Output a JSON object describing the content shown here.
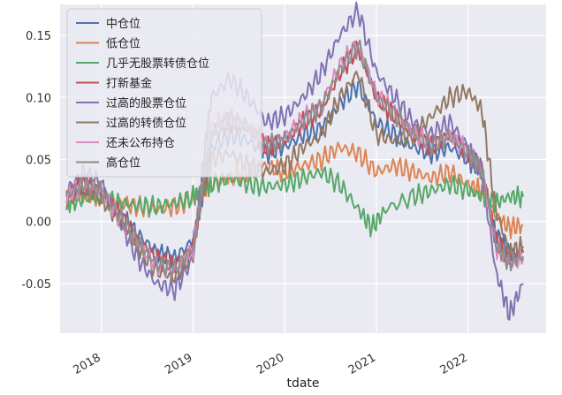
{
  "chart_data": {
    "type": "line",
    "xlabel": "tdate",
    "ylabel": "",
    "ylim": [
      -0.09,
      0.175
    ],
    "grid": true,
    "legend_position": "top-left",
    "x_ticks": [
      "2018",
      "2019",
      "2020",
      "2021",
      "2022"
    ],
    "y_ticks": [
      "0.15",
      "0.10",
      "0.05",
      "0.00",
      "-0.05"
    ],
    "y_tick_values": [
      0.15,
      0.1,
      0.05,
      0.0,
      -0.05
    ],
    "x_range": [
      2017.55,
      2022.85
    ],
    "series": [
      {
        "name": "中仓位",
        "color": "#4c72b0",
        "points": [
          [
            2017.62,
            0.02
          ],
          [
            2017.8,
            0.028
          ],
          [
            2018.0,
            0.022
          ],
          [
            2018.2,
            0.005
          ],
          [
            2018.4,
            -0.01
          ],
          [
            2018.6,
            -0.025
          ],
          [
            2018.8,
            -0.03
          ],
          [
            2019.0,
            -0.015
          ],
          [
            2019.1,
            0.02
          ],
          [
            2019.2,
            0.06
          ],
          [
            2019.4,
            0.07
          ],
          [
            2019.6,
            0.065
          ],
          [
            2019.8,
            0.055
          ],
          [
            2020.0,
            0.06
          ],
          [
            2020.2,
            0.07
          ],
          [
            2020.4,
            0.075
          ],
          [
            2020.6,
            0.095
          ],
          [
            2020.8,
            0.11
          ],
          [
            2021.0,
            0.08
          ],
          [
            2021.2,
            0.07
          ],
          [
            2021.4,
            0.06
          ],
          [
            2021.6,
            0.055
          ],
          [
            2021.8,
            0.06
          ],
          [
            2022.0,
            0.05
          ],
          [
            2022.15,
            0.04
          ],
          [
            2022.3,
            -0.01
          ],
          [
            2022.45,
            -0.025
          ],
          [
            2022.6,
            -0.03
          ]
        ]
      },
      {
        "name": "低仓位",
        "color": "#dd8452",
        "points": [
          [
            2017.62,
            0.018
          ],
          [
            2017.8,
            0.02
          ],
          [
            2018.0,
            0.022
          ],
          [
            2018.2,
            0.015
          ],
          [
            2018.4,
            0.012
          ],
          [
            2018.6,
            0.01
          ],
          [
            2018.8,
            0.012
          ],
          [
            2019.0,
            0.018
          ],
          [
            2019.1,
            0.025
          ],
          [
            2019.2,
            0.03
          ],
          [
            2019.4,
            0.035
          ],
          [
            2019.6,
            0.04
          ],
          [
            2019.8,
            0.045
          ],
          [
            2020.0,
            0.04
          ],
          [
            2020.2,
            0.045
          ],
          [
            2020.4,
            0.05
          ],
          [
            2020.6,
            0.06
          ],
          [
            2020.8,
            0.055
          ],
          [
            2021.0,
            0.04
          ],
          [
            2021.2,
            0.045
          ],
          [
            2021.4,
            0.04
          ],
          [
            2021.6,
            0.035
          ],
          [
            2021.8,
            0.04
          ],
          [
            2022.0,
            0.03
          ],
          [
            2022.15,
            0.025
          ],
          [
            2022.3,
            0.005
          ],
          [
            2022.45,
            -0.005
          ],
          [
            2022.6,
            -0.003
          ]
        ]
      },
      {
        "name": "几乎无股票转债仓位",
        "color": "#55a868",
        "points": [
          [
            2017.62,
            0.015
          ],
          [
            2017.8,
            0.018
          ],
          [
            2018.0,
            0.02
          ],
          [
            2018.2,
            0.015
          ],
          [
            2018.4,
            0.013
          ],
          [
            2018.6,
            0.012
          ],
          [
            2018.8,
            0.015
          ],
          [
            2019.0,
            0.02
          ],
          [
            2019.1,
            0.025
          ],
          [
            2019.2,
            0.03
          ],
          [
            2019.4,
            0.035
          ],
          [
            2019.6,
            0.03
          ],
          [
            2019.8,
            0.028
          ],
          [
            2020.0,
            0.03
          ],
          [
            2020.2,
            0.035
          ],
          [
            2020.4,
            0.04
          ],
          [
            2020.6,
            0.03
          ],
          [
            2020.8,
            0.01
          ],
          [
            2020.95,
            -0.005
          ],
          [
            2021.1,
            0.01
          ],
          [
            2021.4,
            0.02
          ],
          [
            2021.6,
            0.025
          ],
          [
            2021.8,
            0.03
          ],
          [
            2022.0,
            0.025
          ],
          [
            2022.15,
            0.02
          ],
          [
            2022.3,
            0.015
          ],
          [
            2022.45,
            0.02
          ],
          [
            2022.6,
            0.02
          ]
        ]
      },
      {
        "name": "打新基金",
        "color": "#c44e52",
        "points": [
          [
            2017.62,
            0.022
          ],
          [
            2017.8,
            0.03
          ],
          [
            2018.0,
            0.025
          ],
          [
            2018.2,
            0.005
          ],
          [
            2018.4,
            -0.015
          ],
          [
            2018.6,
            -0.03
          ],
          [
            2018.8,
            -0.035
          ],
          [
            2019.0,
            -0.02
          ],
          [
            2019.1,
            0.025
          ],
          [
            2019.2,
            0.07
          ],
          [
            2019.4,
            0.08
          ],
          [
            2019.6,
            0.075
          ],
          [
            2019.8,
            0.06
          ],
          [
            2020.0,
            0.065
          ],
          [
            2020.2,
            0.08
          ],
          [
            2020.4,
            0.09
          ],
          [
            2020.6,
            0.12
          ],
          [
            2020.8,
            0.14
          ],
          [
            2021.0,
            0.1
          ],
          [
            2021.2,
            0.085
          ],
          [
            2021.4,
            0.07
          ],
          [
            2021.6,
            0.06
          ],
          [
            2021.8,
            0.07
          ],
          [
            2022.0,
            0.055
          ],
          [
            2022.15,
            0.045
          ],
          [
            2022.3,
            -0.015
          ],
          [
            2022.45,
            -0.03
          ],
          [
            2022.6,
            -0.025
          ]
        ]
      },
      {
        "name": "过高的股票仓位",
        "color": "#8172b3",
        "points": [
          [
            2017.62,
            0.025
          ],
          [
            2017.8,
            0.04
          ],
          [
            2018.0,
            0.03
          ],
          [
            2018.2,
            0.0
          ],
          [
            2018.4,
            -0.03
          ],
          [
            2018.6,
            -0.05
          ],
          [
            2018.8,
            -0.055
          ],
          [
            2019.0,
            -0.03
          ],
          [
            2019.1,
            0.04
          ],
          [
            2019.2,
            0.1
          ],
          [
            2019.4,
            0.115
          ],
          [
            2019.6,
            0.1
          ],
          [
            2019.8,
            0.08
          ],
          [
            2020.0,
            0.085
          ],
          [
            2020.2,
            0.1
          ],
          [
            2020.4,
            0.12
          ],
          [
            2020.6,
            0.15
          ],
          [
            2020.8,
            0.17
          ],
          [
            2021.0,
            0.12
          ],
          [
            2021.2,
            0.1
          ],
          [
            2021.4,
            0.08
          ],
          [
            2021.6,
            0.07
          ],
          [
            2021.8,
            0.08
          ],
          [
            2022.0,
            0.06
          ],
          [
            2022.15,
            0.04
          ],
          [
            2022.3,
            -0.04
          ],
          [
            2022.45,
            -0.075
          ],
          [
            2022.6,
            -0.05
          ]
        ]
      },
      {
        "name": "过高的转债仓位",
        "color": "#937860",
        "points": [
          [
            2017.62,
            0.018
          ],
          [
            2017.8,
            0.025
          ],
          [
            2018.0,
            0.02
          ],
          [
            2018.2,
            0.0
          ],
          [
            2018.4,
            -0.02
          ],
          [
            2018.6,
            -0.04
          ],
          [
            2018.8,
            -0.045
          ],
          [
            2019.0,
            -0.025
          ],
          [
            2019.1,
            0.02
          ],
          [
            2019.2,
            0.05
          ],
          [
            2019.4,
            0.055
          ],
          [
            2019.6,
            0.045
          ],
          [
            2019.8,
            0.04
          ],
          [
            2020.0,
            0.045
          ],
          [
            2020.2,
            0.06
          ],
          [
            2020.4,
            0.07
          ],
          [
            2020.6,
            0.1
          ],
          [
            2020.8,
            0.12
          ],
          [
            2021.0,
            0.07
          ],
          [
            2021.2,
            0.065
          ],
          [
            2021.4,
            0.07
          ],
          [
            2021.6,
            0.085
          ],
          [
            2021.8,
            0.1
          ],
          [
            2022.0,
            0.105
          ],
          [
            2022.15,
            0.09
          ],
          [
            2022.3,
            0.01
          ],
          [
            2022.45,
            -0.025
          ],
          [
            2022.6,
            -0.02
          ]
        ]
      },
      {
        "name": "还未公布持仓",
        "color": "#da8bc3",
        "points": [
          [
            2017.62,
            0.02
          ],
          [
            2017.8,
            0.03
          ],
          [
            2018.0,
            0.024
          ],
          [
            2018.2,
            0.003
          ],
          [
            2018.4,
            -0.018
          ],
          [
            2018.6,
            -0.035
          ],
          [
            2018.8,
            -0.04
          ],
          [
            2019.0,
            -0.022
          ],
          [
            2019.1,
            0.03
          ],
          [
            2019.2,
            0.075
          ],
          [
            2019.4,
            0.085
          ],
          [
            2019.6,
            0.078
          ],
          [
            2019.8,
            0.062
          ],
          [
            2020.0,
            0.068
          ],
          [
            2020.2,
            0.083
          ],
          [
            2020.4,
            0.095
          ],
          [
            2020.6,
            0.125
          ],
          [
            2020.8,
            0.145
          ],
          [
            2021.0,
            0.102
          ],
          [
            2021.2,
            0.088
          ],
          [
            2021.4,
            0.072
          ],
          [
            2021.6,
            0.062
          ],
          [
            2021.8,
            0.07
          ],
          [
            2022.0,
            0.056
          ],
          [
            2022.15,
            0.042
          ],
          [
            2022.3,
            -0.02
          ],
          [
            2022.45,
            -0.035
          ],
          [
            2022.6,
            -0.03
          ]
        ]
      },
      {
        "name": "高仓位",
        "color": "#8c8c8c",
        "points": [
          [
            2017.62,
            0.021
          ],
          [
            2017.8,
            0.031
          ],
          [
            2018.0,
            0.025
          ],
          [
            2018.2,
            0.004
          ],
          [
            2018.4,
            -0.017
          ],
          [
            2018.6,
            -0.034
          ],
          [
            2018.8,
            -0.039
          ],
          [
            2019.0,
            -0.021
          ],
          [
            2019.1,
            0.028
          ],
          [
            2019.2,
            0.072
          ],
          [
            2019.4,
            0.082
          ],
          [
            2019.6,
            0.076
          ],
          [
            2019.8,
            0.061
          ],
          [
            2020.0,
            0.066
          ],
          [
            2020.2,
            0.081
          ],
          [
            2020.4,
            0.092
          ],
          [
            2020.6,
            0.122
          ],
          [
            2020.8,
            0.142
          ],
          [
            2021.0,
            0.1
          ],
          [
            2021.2,
            0.086
          ],
          [
            2021.4,
            0.071
          ],
          [
            2021.6,
            0.061
          ],
          [
            2021.8,
            0.069
          ],
          [
            2022.0,
            0.055
          ],
          [
            2022.15,
            0.041
          ],
          [
            2022.3,
            -0.018
          ],
          [
            2022.45,
            -0.033
          ],
          [
            2022.6,
            -0.028
          ]
        ]
      }
    ]
  }
}
